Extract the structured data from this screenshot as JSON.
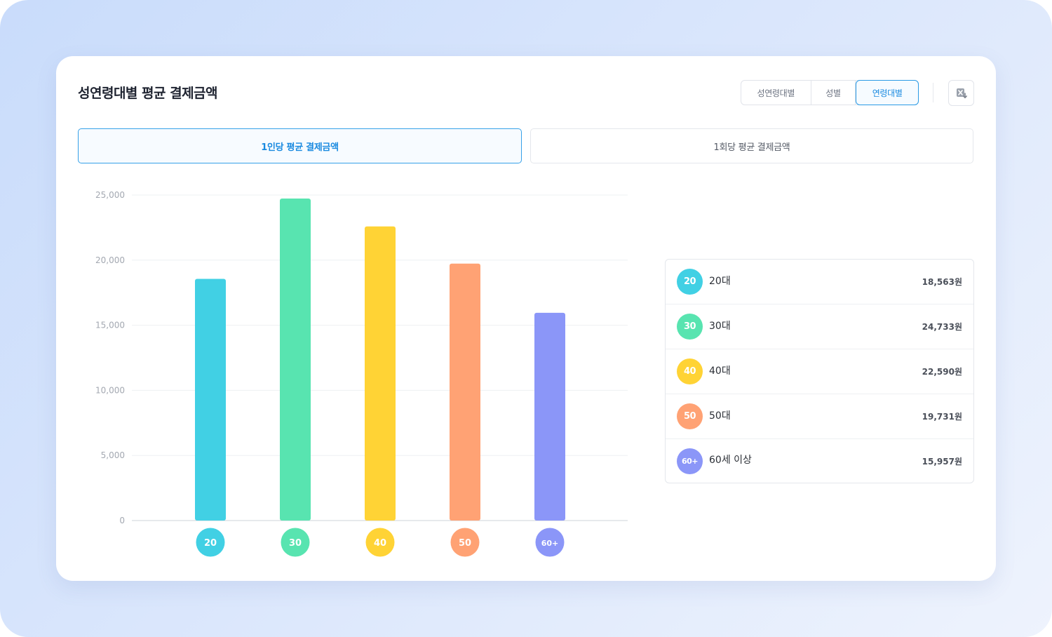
{
  "card": {
    "title": "성연령대별 평균 결제금액"
  },
  "segment": {
    "items": [
      "성연령대별",
      "성별",
      "연령대별"
    ],
    "active": 2
  },
  "tabs": {
    "per_person": "1인당 평균 결제금액",
    "per_transaction": "1회당 평균 결제금액",
    "active": 0
  },
  "download": {
    "icon": "excel-download-icon"
  },
  "chart_data": {
    "type": "bar",
    "categories": [
      "20",
      "30",
      "40",
      "50",
      "60+"
    ],
    "values": [
      18563,
      24733,
      22590,
      19731,
      15957
    ],
    "colors": [
      "#41d0e4",
      "#58e4b0",
      "#ffd335",
      "#ffa274",
      "#8b96f8"
    ],
    "ylim": [
      0,
      25000
    ],
    "yticks": [
      0,
      5000,
      10000,
      15000,
      20000,
      25000
    ],
    "ytick_labels": [
      "0",
      "5,000",
      "10,000",
      "15,000",
      "20,000",
      "25,000"
    ],
    "grid": true,
    "legend_position": "right",
    "legend": [
      {
        "badge": "20",
        "label": "20대",
        "value": "18,563원"
      },
      {
        "badge": "30",
        "label": "30대",
        "value": "24,733원"
      },
      {
        "badge": "40",
        "label": "40대",
        "value": "22,590원"
      },
      {
        "badge": "50",
        "label": "50대",
        "value": "19,731원"
      },
      {
        "badge": "60+",
        "label": "60세 이상",
        "value": "15,957원"
      }
    ]
  }
}
